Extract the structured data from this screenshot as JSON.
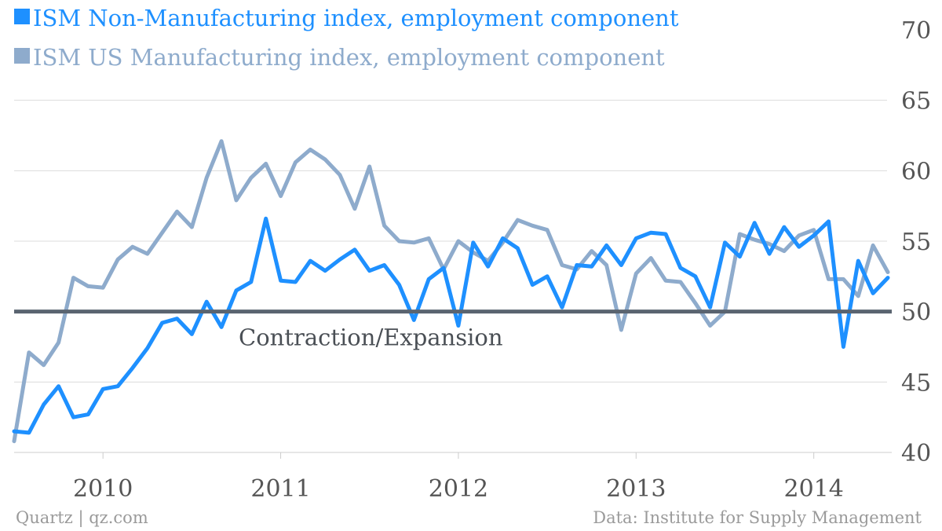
{
  "chart_data": {
    "type": "line",
    "title": "",
    "xlabel": "",
    "ylabel": "",
    "ylim": [
      40,
      70
    ],
    "yticks": [
      40,
      45,
      50,
      55,
      60,
      65,
      70
    ],
    "xticks": [
      "2010",
      "2011",
      "2012",
      "2013",
      "2014"
    ],
    "x_start": "2009-07",
    "x_end": "2014-05",
    "reference_line": {
      "value": 50,
      "label": "Contraction/Expansion"
    },
    "series": [
      {
        "name": "ISM Non-Manufacturing index, employment component",
        "color": "#1e90ff",
        "values": [
          41.5,
          41.4,
          43.4,
          44.7,
          42.5,
          42.7,
          44.5,
          44.7,
          46.0,
          47.4,
          49.2,
          49.5,
          48.4,
          50.7,
          48.9,
          51.5,
          52.1,
          56.6,
          52.2,
          52.1,
          53.6,
          52.9,
          53.7,
          54.4,
          52.9,
          53.3,
          51.9,
          49.4,
          52.3,
          53.1,
          49.0,
          54.9,
          53.2,
          55.2,
          54.5,
          51.9,
          52.5,
          50.3,
          53.3,
          53.2,
          54.7,
          53.3,
          55.2,
          55.6,
          55.5,
          53.1,
          52.5,
          50.3,
          54.9,
          53.9,
          56.3,
          54.1,
          56.0,
          54.6,
          55.4,
          56.4,
          47.5,
          53.6,
          51.3,
          52.4
        ]
      },
      {
        "name": "ISM US Manufacturing index, employment component",
        "color": "#8eabcc",
        "values": [
          40.8,
          47.1,
          46.2,
          47.8,
          52.4,
          51.8,
          51.7,
          53.7,
          54.6,
          54.1,
          55.6,
          57.1,
          56.0,
          59.5,
          62.1,
          57.9,
          59.5,
          60.5,
          58.2,
          60.6,
          61.5,
          60.8,
          59.7,
          57.3,
          60.3,
          56.1,
          55.0,
          54.9,
          55.2,
          53.0,
          55.0,
          54.2,
          53.6,
          54.9,
          56.5,
          56.1,
          55.8,
          53.3,
          53.0,
          54.3,
          53.3,
          48.7,
          52.7,
          53.8,
          52.2,
          52.1,
          50.6,
          49.0,
          50.0,
          55.5,
          55.1,
          54.8,
          54.3,
          55.4,
          55.8,
          52.3,
          52.3,
          51.1,
          54.7,
          52.8
        ]
      }
    ]
  },
  "legend": {
    "item1": "ISM Non-Manufacturing index, employment component",
    "item2": "ISM US Manufacturing index, employment component"
  },
  "footer": {
    "source_left": "Quartz | qz.com",
    "source_right": "Data: Institute for Supply Management"
  }
}
